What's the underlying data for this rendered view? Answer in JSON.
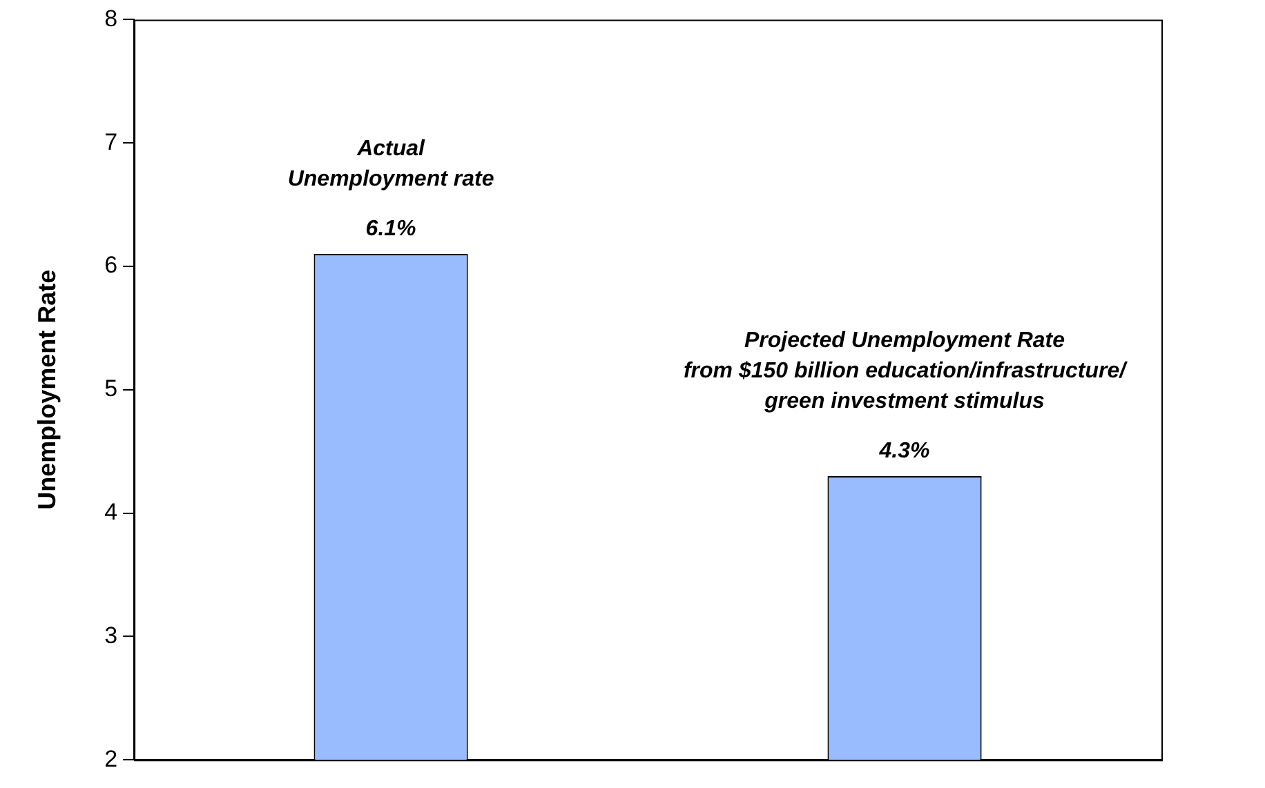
{
  "chart_data": {
    "type": "bar",
    "ylabel": "Unemployment Rate",
    "categories": [
      null,
      null
    ],
    "values": [
      6.1,
      4.3
    ],
    "value_labels": [
      "6.1%",
      "4.3%"
    ],
    "color": "#99bbff",
    "ylim": [
      2,
      8
    ],
    "yticks": [
      2,
      3,
      4,
      5,
      6,
      7,
      8
    ],
    "annotations": [
      "Actual\nUnemployment rate",
      "Projected Unemployment Rate\nfrom $150 billion education/infrastructure/\ngreen investment stimulus"
    ],
    "grid": false,
    "legend": false
  }
}
